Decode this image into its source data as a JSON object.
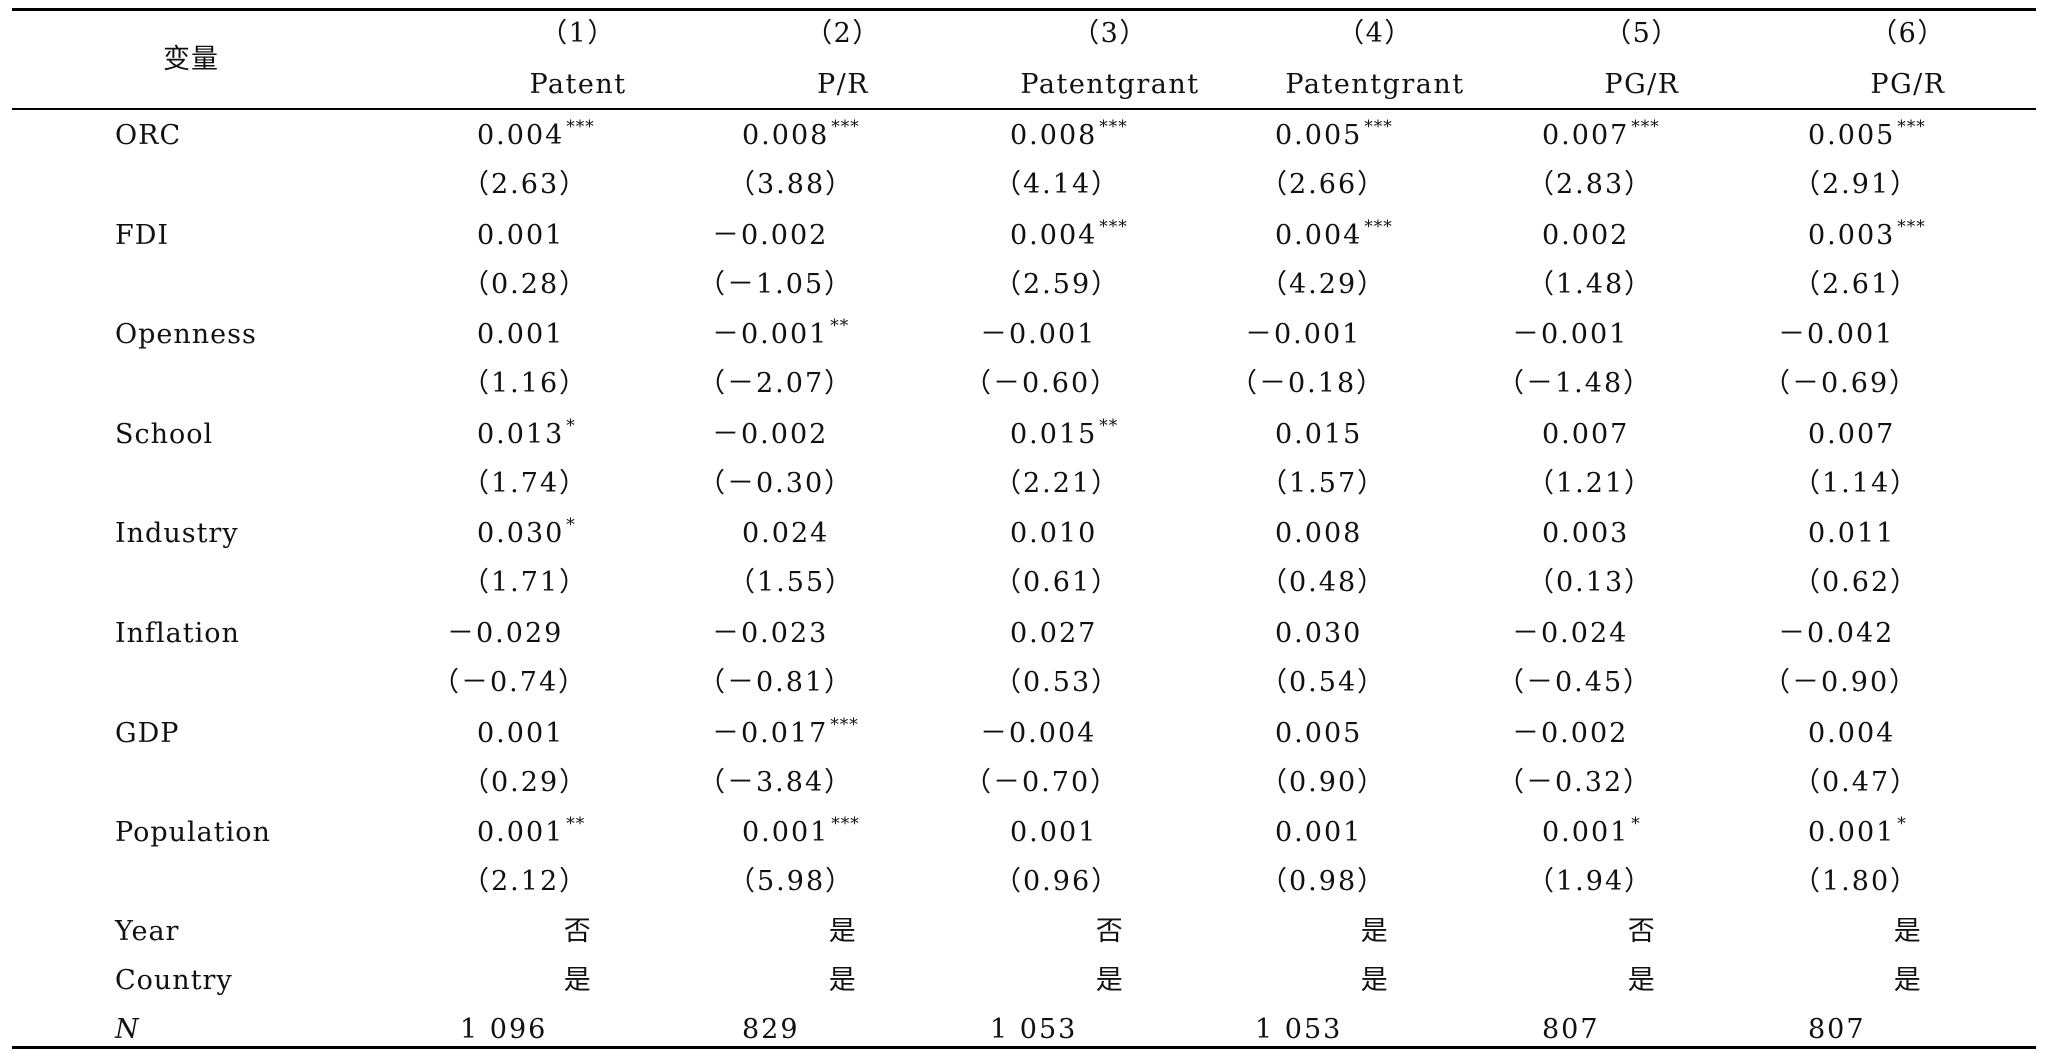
{
  "header": {
    "var_label": "变量",
    "numbers": [
      "（1）",
      "（2）",
      "（3）",
      "（4）",
      "（5）",
      "（6）"
    ],
    "names": [
      "Patent",
      "P/R",
      "Patentgrant",
      "Patentgrant",
      "PG/R",
      "PG/R"
    ]
  },
  "rows": [
    {
      "label": "ORC",
      "coef": [
        {
          "v": "0.004",
          "s": "***"
        },
        {
          "v": "0.008",
          "s": "***"
        },
        {
          "v": "0.008",
          "s": "***"
        },
        {
          "v": "0.005",
          "s": "***"
        },
        {
          "v": "0.007",
          "s": "***"
        },
        {
          "v": "0.005",
          "s": "***"
        }
      ],
      "t": [
        "（2.63）",
        "（3.88）",
        "（4.14）",
        "（2.66）",
        "（2.83）",
        "（2.91）"
      ]
    },
    {
      "label": "FDI",
      "coef": [
        {
          "v": "0.001",
          "s": ""
        },
        {
          "v": "－0.002",
          "s": ""
        },
        {
          "v": "0.004",
          "s": "***"
        },
        {
          "v": "0.004",
          "s": "***"
        },
        {
          "v": "0.002",
          "s": ""
        },
        {
          "v": "0.003",
          "s": "***"
        }
      ],
      "t": [
        "（0.28）",
        "（－1.05）",
        "（2.59）",
        "（4.29）",
        "（1.48）",
        "（2.61）"
      ]
    },
    {
      "label": "Openness",
      "coef": [
        {
          "v": "0.001",
          "s": ""
        },
        {
          "v": "－0.001",
          "s": "**"
        },
        {
          "v": "－0.001",
          "s": ""
        },
        {
          "v": "－0.001",
          "s": ""
        },
        {
          "v": "－0.001",
          "s": ""
        },
        {
          "v": "－0.001",
          "s": ""
        }
      ],
      "t": [
        "（1.16）",
        "（－2.07）",
        "（－0.60）",
        "（－0.18）",
        "（－1.48）",
        "（－0.69）"
      ]
    },
    {
      "label": "School",
      "coef": [
        {
          "v": "0.013",
          "s": "*"
        },
        {
          "v": "－0.002",
          "s": ""
        },
        {
          "v": "0.015",
          "s": "**"
        },
        {
          "v": "0.015",
          "s": ""
        },
        {
          "v": "0.007",
          "s": ""
        },
        {
          "v": "0.007",
          "s": ""
        }
      ],
      "t": [
        "（1.74）",
        "（－0.30）",
        "（2.21）",
        "（1.57）",
        "（1.21）",
        "（1.14）"
      ]
    },
    {
      "label": "Industry",
      "coef": [
        {
          "v": "0.030",
          "s": "*"
        },
        {
          "v": "0.024",
          "s": ""
        },
        {
          "v": "0.010",
          "s": ""
        },
        {
          "v": "0.008",
          "s": ""
        },
        {
          "v": "0.003",
          "s": ""
        },
        {
          "v": "0.011",
          "s": ""
        }
      ],
      "t": [
        "（1.71）",
        "（1.55）",
        "（0.61）",
        "（0.48）",
        "（0.13）",
        "（0.62）"
      ]
    },
    {
      "label": "Inflation",
      "coef": [
        {
          "v": "－0.029",
          "s": ""
        },
        {
          "v": "－0.023",
          "s": ""
        },
        {
          "v": "0.027",
          "s": ""
        },
        {
          "v": "0.030",
          "s": ""
        },
        {
          "v": "－0.024",
          "s": ""
        },
        {
          "v": "－0.042",
          "s": ""
        }
      ],
      "t": [
        "（－0.74）",
        "（－0.81）",
        "（0.53）",
        "（0.54）",
        "（－0.45）",
        "（－0.90）"
      ]
    },
    {
      "label": "GDP",
      "coef": [
        {
          "v": "0.001",
          "s": ""
        },
        {
          "v": "－0.017",
          "s": "***"
        },
        {
          "v": "－0.004",
          "s": ""
        },
        {
          "v": "0.005",
          "s": ""
        },
        {
          "v": "－0.002",
          "s": ""
        },
        {
          "v": "0.004",
          "s": ""
        }
      ],
      "t": [
        "（0.29）",
        "（－3.84）",
        "（－0.70）",
        "（0.90）",
        "（－0.32）",
        "（0.47）"
      ]
    },
    {
      "label": "Population",
      "coef": [
        {
          "v": "0.001",
          "s": "**"
        },
        {
          "v": "0.001",
          "s": "***"
        },
        {
          "v": "0.001",
          "s": ""
        },
        {
          "v": "0.001",
          "s": ""
        },
        {
          "v": "0.001",
          "s": "*"
        },
        {
          "v": "0.001",
          "s": "*"
        }
      ],
      "t": [
        "（2.12）",
        "（5.98）",
        "（0.96）",
        "（0.98）",
        "（1.94）",
        "（1.80）"
      ]
    }
  ],
  "controls": [
    {
      "label": "Year",
      "values": [
        "否",
        "是",
        "否",
        "是",
        "否",
        "是"
      ]
    },
    {
      "label": "Country",
      "values": [
        "是",
        "是",
        "是",
        "是",
        "是",
        "是"
      ]
    }
  ],
  "n_row": {
    "label": "N",
    "values": [
      "1 096",
      "829",
      "1 053",
      "1 053",
      "807",
      "807"
    ]
  }
}
